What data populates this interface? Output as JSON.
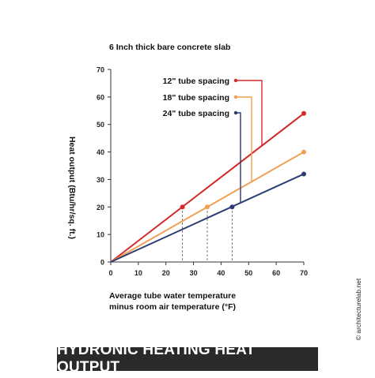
{
  "chart_data": {
    "type": "line",
    "title": "HYDRONIC HEATING HEAT OUTPUT",
    "subtitle": "6 Inch thick bare concrete slab",
    "ylabel": "Heat output (Btu/hr/sq. ft.)",
    "xlabel_line1": "Average tube water temperature",
    "xlabel_line2": "minus room air temperature (°F)",
    "credit": "© architecturelab.net",
    "xlim": [
      0,
      70
    ],
    "ylim": [
      0,
      70
    ],
    "x_ticks": [
      "0",
      "10",
      "20",
      "30",
      "40",
      "50",
      "60",
      "70"
    ],
    "y_ticks": [
      "0",
      "10",
      "20",
      "30",
      "40",
      "50",
      "60",
      "70"
    ],
    "grid": false,
    "legend": "top-center, labels with leader lines",
    "series": [
      {
        "name": "12\" tube spacing",
        "color": "#d42a2a",
        "x": [
          0,
          70
        ],
        "y": [
          0,
          54
        ],
        "marker": {
          "x": 26,
          "y": 20
        }
      },
      {
        "name": "18\" tube spacing",
        "color": "#f0a050",
        "x": [
          0,
          70
        ],
        "y": [
          0,
          40
        ],
        "marker": {
          "x": 35,
          "y": 20
        }
      },
      {
        "name": "24\" tube spacing",
        "color": "#2b3d73",
        "x": [
          0,
          70
        ],
        "y": [
          0,
          32
        ],
        "marker": {
          "x": 44,
          "y": 20
        }
      }
    ]
  }
}
